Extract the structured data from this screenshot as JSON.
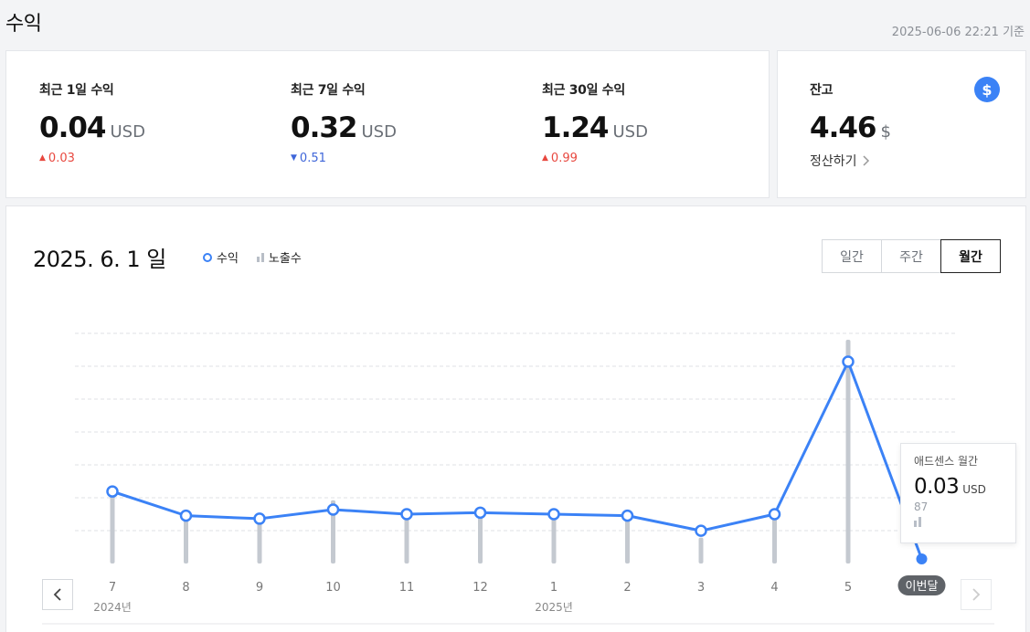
{
  "header": {
    "title": "수익",
    "timestamp": "2025-06-06 22:21 기준"
  },
  "summary": [
    {
      "label": "최근 1일 수익",
      "value": "0.04",
      "unit": "USD",
      "delta": "0.03",
      "direction": "up"
    },
    {
      "label": "최근 7일 수익",
      "value": "0.32",
      "unit": "USD",
      "delta": "0.51",
      "direction": "down"
    },
    {
      "label": "최근 30일 수익",
      "value": "1.24",
      "unit": "USD",
      "delta": "0.99",
      "direction": "up"
    }
  ],
  "balance": {
    "label": "잔고",
    "value": "4.46",
    "unit": "$",
    "action_label": "정산하기",
    "icon": "dollar-icon",
    "icon_glyph": "$"
  },
  "chart_header": {
    "date": "2025. 6. 1 일",
    "legend_revenue": "수익",
    "legend_impressions": "노출수",
    "tabs": [
      "일간",
      "주간",
      "월간"
    ],
    "active_tab": "월간"
  },
  "tooltip": {
    "title": "애드센스 월간",
    "value": "0.03",
    "unit": "USD",
    "impressions": "87"
  },
  "chart_data": {
    "type": "line",
    "categories": [
      "7",
      "8",
      "9",
      "10",
      "11",
      "12",
      "1",
      "2",
      "3",
      "4",
      "5",
      "이번달"
    ],
    "year_labels": [
      {
        "at": "7",
        "label": "2024년"
      },
      {
        "at": "1",
        "label": "2025년"
      }
    ],
    "series": [
      {
        "name": "수익",
        "values": [
          0.19,
          0.11,
          0.1,
          0.13,
          0.115,
          0.12,
          0.115,
          0.11,
          0.06,
          0.115,
          0.62,
          0.03
        ]
      },
      {
        "name": "노출수",
        "values": [
          220,
          160,
          130,
          195,
          145,
          175,
          160,
          150,
          80,
          160,
          690,
          87
        ]
      }
    ],
    "colors": {
      "line": "#3b82f6",
      "bar": "#c4c9d0",
      "grid": "#dfe2e6"
    }
  }
}
